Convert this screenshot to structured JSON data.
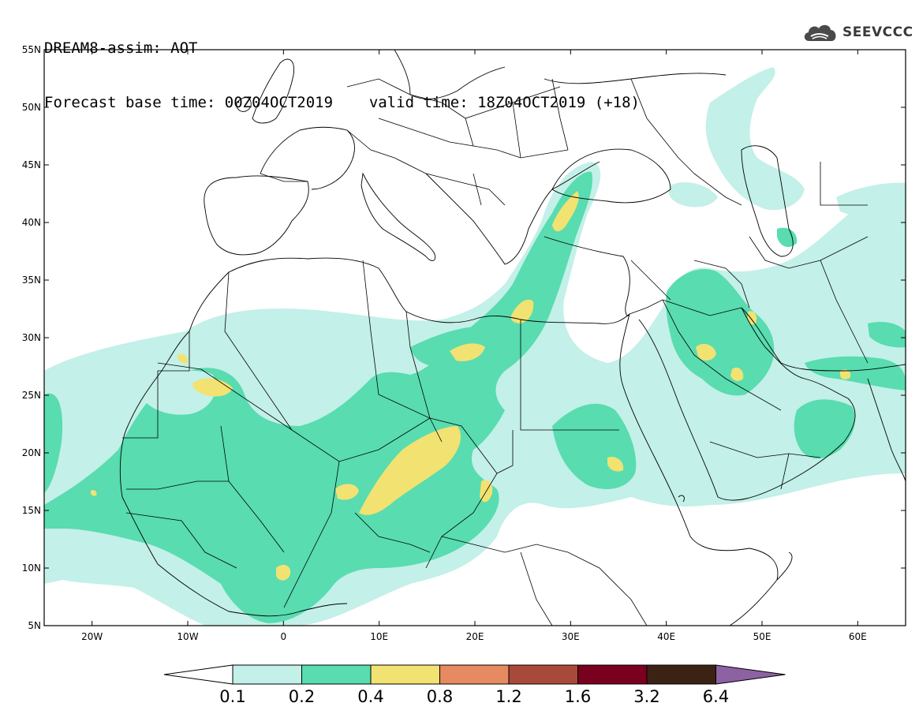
{
  "header": {
    "title": "DREAM8-assim: AOT",
    "base_time_label": "Forecast base time: 00Z04OCT2019",
    "valid_time_label": "valid time: 18Z04OCT2019 (+18)"
  },
  "logo": {
    "text": "SEEVCCC",
    "icon": "cloud-icon"
  },
  "axes": {
    "lat_labels": [
      "55N",
      "50N",
      "45N",
      "40N",
      "35N",
      "30N",
      "25N",
      "20N",
      "15N",
      "10N",
      "5N"
    ],
    "lon_labels": [
      "20W",
      "10W",
      "0",
      "10E",
      "20E",
      "30E",
      "40E",
      "50E",
      "60E"
    ]
  },
  "colorbar": {
    "labels": [
      "0.1",
      "0.2",
      "0.4",
      "0.8",
      "1.2",
      "1.6",
      "3.2",
      "6.4"
    ],
    "colors": [
      "#ffffff",
      "#c3f0e8",
      "#58dcb0",
      "#f2e271",
      "#e68a62",
      "#a84a3a",
      "#7a0020",
      "#3b2214",
      "#8c62a3"
    ]
  },
  "map": {
    "bounds": {
      "lon_min": -25,
      "lon_max": 65,
      "lat_min": 5,
      "lat_max": 55
    },
    "coastline_color": "#000000",
    "border_color": "#000000"
  }
}
